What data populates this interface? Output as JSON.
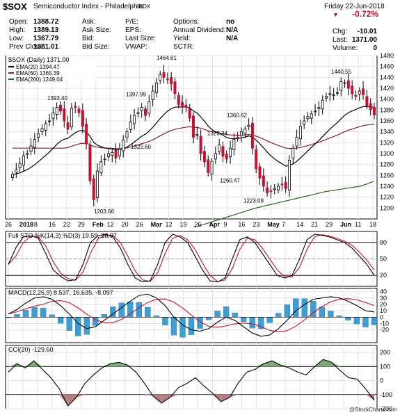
{
  "header": {
    "symbol": "$SOX",
    "name": "Semiconductor Index - Philadelphia",
    "exchange": "INDX",
    "date": "Friday 22-Jun-2018",
    "change_pct": "-0.72%",
    "rows": [
      {
        "l1": "Open:",
        "v1": "1388.72",
        "l2": "Ask:",
        "v2": "",
        "l3": "P/E:",
        "v3": "",
        "l4": "Options:",
        "v4": "no"
      },
      {
        "l1": "High:",
        "v1": "1389.13",
        "l2": "Ask Size:",
        "v2": "",
        "l3": "EPS:",
        "v3": "",
        "l4": "Annual Dividend:",
        "v4": "N/A"
      },
      {
        "l1": "Low:",
        "v1": "1367.79",
        "l2": "Bid:",
        "v2": "",
        "l3": "Last Size:",
        "v3": "",
        "l4": "Yield:",
        "v4": "N/A"
      },
      {
        "l1": "Prev Close:",
        "v1": "1381.01",
        "l2": "Bid Size:",
        "v2": "",
        "l3": "VWAP:",
        "v3": "",
        "l4": "SCTR:",
        "v4": ""
      }
    ],
    "right": [
      {
        "label": "Chg:",
        "value": "-10.01"
      },
      {
        "label": "Last:",
        "value": "1371.00"
      },
      {
        "label": "Volume:",
        "value": "0"
      }
    ],
    "watermark": "@StockCharts.com"
  },
  "chart_data": [
    {
      "type": "candlestick",
      "title": "$SOX (Daily) 1371.00",
      "legend": [
        "EMA(20) 1394.47",
        "EMA(60) 1365.39",
        "EMA(260) 1249.04"
      ],
      "series_colors": {
        "ema20": "#000000",
        "ema60": "#8b1a3a",
        "ema260": "#1a6b1a",
        "up": "#ffffff",
        "down": "#c8102e"
      },
      "ylim": [
        1180,
        1480
      ],
      "yticks": [
        1200,
        1220,
        1240,
        1260,
        1280,
        1300,
        1320,
        1340,
        1360,
        1380,
        1400,
        1420,
        1440,
        1460,
        1480
      ],
      "xtick_labels": [
        "26",
        "2018",
        "8",
        "16",
        "22",
        "29",
        "Feb",
        "12",
        "20",
        "26",
        "Mar",
        "12",
        "19",
        "26",
        "Apr",
        "9",
        "16",
        "23",
        "May",
        "7",
        "14",
        "21",
        "29",
        "Jun",
        "11",
        "18"
      ],
      "annotations": [
        "1393.40",
        "1464.61",
        "1397.99",
        "1322.60",
        "1203.66",
        "1329.34",
        "1360.62",
        "1260.47",
        "1223.09",
        "1440.55"
      ],
      "closes": [
        1262,
        1270,
        1282,
        1296,
        1300,
        1314,
        1326,
        1336,
        1346,
        1355,
        1360,
        1375,
        1385,
        1378,
        1360,
        1345,
        1383,
        1385,
        1375,
        1350,
        1318,
        1250,
        1215,
        1268,
        1285,
        1290,
        1300,
        1302,
        1292,
        1308,
        1325,
        1340,
        1358,
        1370,
        1375,
        1385,
        1370,
        1395,
        1415,
        1430,
        1445,
        1440,
        1436,
        1428,
        1410,
        1390,
        1385,
        1385,
        1365,
        1330,
        1335,
        1300,
        1285,
        1265,
        1286,
        1300,
        1316,
        1295,
        1290,
        1310,
        1326,
        1329,
        1340,
        1345,
        1352,
        1310,
        1272,
        1255,
        1240,
        1228,
        1230,
        1236,
        1240,
        1243,
        1236,
        1288,
        1310,
        1330,
        1350,
        1360,
        1368,
        1373,
        1378,
        1385,
        1398,
        1405,
        1410,
        1408,
        1412,
        1432,
        1430,
        1420,
        1410,
        1405,
        1415,
        1408,
        1388,
        1381,
        1371
      ],
      "ema260": [
        1165,
        1168,
        1172,
        1176,
        1180,
        1184,
        1188,
        1192,
        1196,
        1200,
        1203,
        1206,
        1209,
        1212,
        1215,
        1218,
        1221,
        1224,
        1227,
        1230,
        1232,
        1234,
        1236,
        1238,
        1240,
        1244,
        1249
      ]
    },
    {
      "type": "line",
      "title": "Full STO %K(14,3) %D(3) 19.59, 28.97",
      "ylim": [
        0,
        100
      ],
      "yticks": [
        20,
        50,
        80
      ],
      "series": [
        {
          "name": "%K",
          "final": 19.59
        },
        {
          "name": "%D",
          "final": 28.97
        }
      ]
    },
    {
      "type": "line+bar",
      "title": "MACD(12,26,9) 8.537, 16.635, -8.097",
      "ylim": [
        -40,
        45
      ],
      "yticks": [
        -20,
        -10,
        0,
        10,
        20,
        30,
        40
      ],
      "series": [
        {
          "name": "MACD",
          "final": 8.537
        },
        {
          "name": "Signal",
          "final": 16.635
        },
        {
          "name": "Histogram",
          "final": -8.097
        }
      ]
    },
    {
      "type": "line",
      "title": "CCI(20) -129.60",
      "ylim": [
        -200,
        250
      ],
      "yticks": [
        -200,
        -100,
        0,
        100,
        200
      ],
      "series": [
        {
          "name": "CCI",
          "final": -129.6
        }
      ]
    }
  ]
}
